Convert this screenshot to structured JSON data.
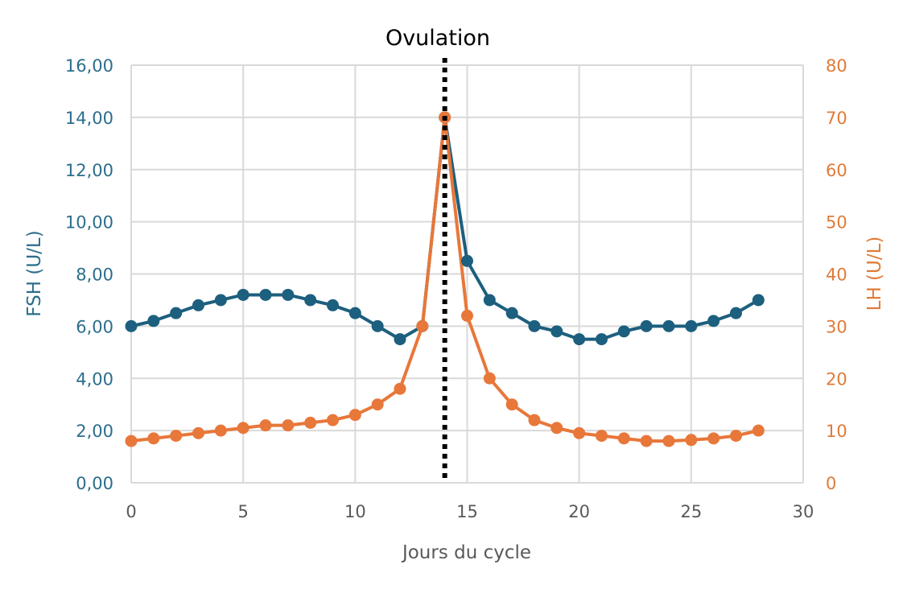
{
  "chart_data": {
    "type": "line",
    "annotation": "Ovulation",
    "annotation_x": 14,
    "xlabel": "Jours du cycle",
    "ylabel_left": "FSH (U/L)",
    "ylabel_right": "LH (U/L)",
    "xlim": [
      0,
      30
    ],
    "ylim_left": [
      0,
      16
    ],
    "ylim_right": [
      0,
      80
    ],
    "x_ticks": [
      "0",
      "5",
      "10",
      "15",
      "20",
      "25",
      "30"
    ],
    "y_ticks_left": [
      "0,00",
      "2,00",
      "4,00",
      "6,00",
      "8,00",
      "10,00",
      "12,00",
      "14,00",
      "16,00"
    ],
    "y_ticks_right": [
      "0",
      "10",
      "20",
      "30",
      "40",
      "50",
      "60",
      "70",
      "80"
    ],
    "grid": true,
    "x": [
      0,
      1,
      2,
      3,
      4,
      5,
      6,
      7,
      8,
      9,
      10,
      11,
      12,
      13,
      14,
      15,
      16,
      17,
      18,
      19,
      20,
      21,
      22,
      23,
      24,
      25,
      26,
      27,
      28
    ],
    "series": [
      {
        "name": "FSH",
        "axis": "left",
        "color": "#1d5f7e",
        "values": [
          6.0,
          6.2,
          6.5,
          6.8,
          7.0,
          7.2,
          7.2,
          7.2,
          7.0,
          6.8,
          6.5,
          6.0,
          5.5,
          6.0,
          14.0,
          8.5,
          7.0,
          6.5,
          6.0,
          5.8,
          5.5,
          5.5,
          5.8,
          6.0,
          6.0,
          6.0,
          6.2,
          6.5,
          7.0
        ]
      },
      {
        "name": "LH",
        "axis": "right",
        "color": "#e8773a",
        "values": [
          8,
          8.5,
          9,
          9.5,
          10,
          10.5,
          11,
          11,
          11.5,
          12,
          13,
          15,
          18,
          30,
          70,
          32,
          20,
          15,
          12,
          10.5,
          9.5,
          9,
          8.5,
          8,
          8,
          8.2,
          8.5,
          9,
          10
        ]
      }
    ],
    "colors": {
      "left_axis": "#2b6e8c",
      "right_axis": "#e07b39",
      "grid": "#d9d9d9",
      "axis_label": "#595959"
    }
  }
}
